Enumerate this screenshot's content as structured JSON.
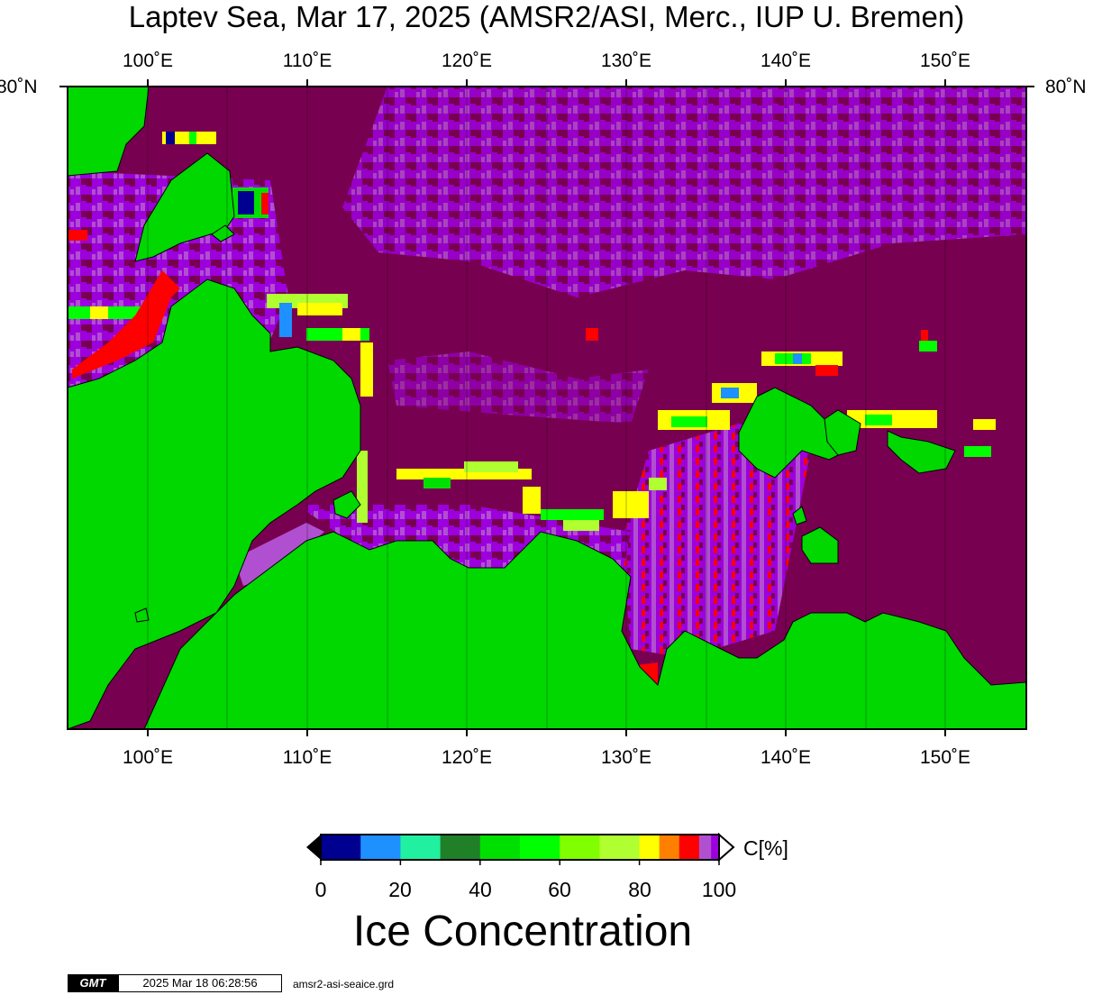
{
  "title": "Laptev Sea, Mar 17, 2025 (AMSR2/ASI, Merc., IUP U. Bremen)",
  "map": {
    "lon_ticks": [
      "100˚E",
      "110˚E",
      "120˚E",
      "130˚E",
      "140˚E",
      "150˚E"
    ],
    "lat_tick": "80˚N",
    "colors": {
      "water_ice_100": "#780050",
      "ice_high": "#9c00dc",
      "ice_mid": "#b050d0",
      "land": "#00d800",
      "red": "#ff0000"
    }
  },
  "colorbar": {
    "unit": "C[%]",
    "title": "Ice Concentration",
    "ticks": [
      "0",
      "20",
      "40",
      "60",
      "80",
      "100"
    ],
    "colors": [
      "#000090",
      "#1e90ff",
      "#20f0a0",
      "#208028",
      "#00e000",
      "#00ff00",
      "#80ff00",
      "#b0ff30",
      "#ffff00",
      "#ff8000",
      "#ff0000",
      "#b050d0",
      "#9c00dc"
    ]
  },
  "footer": {
    "logo": "GMT",
    "timestamp": "2025 Mar 18 06:28:56",
    "file": "amsr2-asi-seaice.grd"
  }
}
